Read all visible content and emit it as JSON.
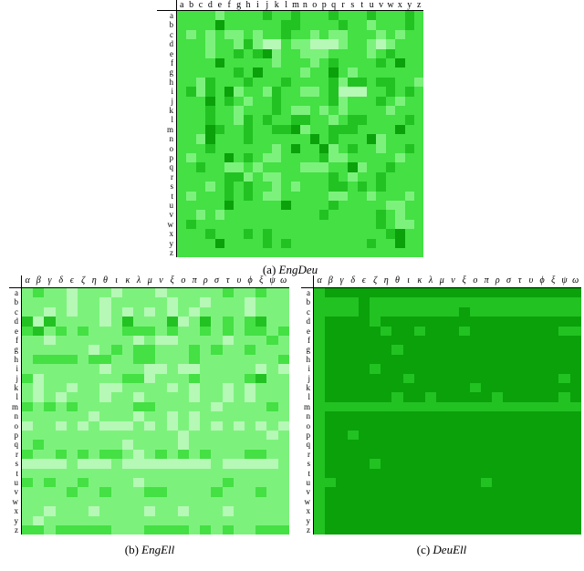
{
  "figure": {
    "panels": [
      {
        "id": "a",
        "caption_prefix": "(a)",
        "caption_name": "EngDeu",
        "col_labels": [
          "a",
          "b",
          "c",
          "d",
          "e",
          "f",
          "g",
          "h",
          "i",
          "j",
          "k",
          "l",
          "m",
          "n",
          "o",
          "p",
          "q",
          "r",
          "s",
          "t",
          "u",
          "v",
          "w",
          "x",
          "y",
          "z"
        ],
        "row_labels": [
          "a",
          "b",
          "c",
          "d",
          "e",
          "f",
          "g",
          "h",
          "i",
          "j",
          "k",
          "l",
          "m",
          "n",
          "o",
          "p",
          "q",
          "r",
          "s",
          "t",
          "u",
          "v",
          "w",
          "x",
          "y",
          "z"
        ],
        "palette": [
          "#0aa10a",
          "#22c222",
          "#44e044",
          "#7cf27c",
          "#b6f8b6"
        ],
        "levels": [
          "22223222212212221222122212",
          "22220222222112222122322212",
          "23232332322122323322232322",
          "22232231344233444322343222",
          "22232212103223332222321222",
          "22220222223222321222212022",
          "22222212022223220232222222",
          "22312221222122221311211223",
          "21312032231223321444221212",
          "22202123221222221322212322",
          "22212232221233232322223222",
          "22212231212211223211222212",
          "22201221221103221112222022",
          "22302221222222021222032222",
          "22212222223202203212232212",
          "23222021233222213322222322",
          "22122332322223332203221222",
          "22222113233222221232212222",
          "22232121223232221121212222",
          "23222121233222223322322232",
          "22222022222022221222223322",
          "22323222222222212222212322",
          "21222222222222222222212332",
          "22212221212222222222221022",
          "22220222212122222222122022",
          "22222222222222222222222222"
        ]
      },
      {
        "id": "b",
        "caption_prefix": "(b)",
        "caption_name": "EngEll",
        "col_labels": [
          "α",
          "β",
          "γ",
          "δ",
          "ϵ",
          "ζ",
          "η",
          "θ",
          "ι",
          "κ",
          "λ",
          "μ",
          "ν",
          "ξ",
          "ο",
          "π",
          "ρ",
          "σ",
          "τ",
          "υ",
          "ϕ",
          "ξ",
          "ψ",
          "ω"
        ],
        "row_labels": [
          "a",
          "b",
          "c",
          "d",
          "e",
          "f",
          "g",
          "h",
          "i",
          "j",
          "k",
          "l",
          "m",
          "n",
          "o",
          "p",
          "q",
          "r",
          "s",
          "t",
          "u",
          "v",
          "w",
          "x",
          "y",
          "z"
        ],
        "palette": [
          "#0aa10a",
          "#22c222",
          "#44e044",
          "#7cf27c",
          "#b6f8b6"
        ],
        "levels": [
          "323343334333433333233233",
          "333343343333343343334333",
          "334343343434343433334333",
          "141333343133314313232133",
          "213232333222323323232232",
          "334333333343443333433323",
          "333333432322333232332333",
          "322223223322333233333332",
          "333333343334434433333434",
          "243333333224333233332133",
          "343343344333343433434333",
          "343433343343333433434333",
          "232323333322333334333323",
          "333333433343343433333333",
          "433434344434343434343434",
          "333333333333334333333343",
          "323333333433334333333333",
          "233232322343232323332233",
          "444434443444444443444443",
          "333333333333333333333333",
          "232332333343333333233333",
          "333323323332233332333233",
          "333333333333333333333333",
          "334333433334334333433333",
          "343333333333333333333333",
          "223222223332222323233222"
        ]
      },
      {
        "id": "c",
        "caption_prefix": "(c)",
        "caption_name": "DeuEll",
        "col_labels": [
          "α",
          "β",
          "γ",
          "δ",
          "ϵ",
          "ζ",
          "η",
          "θ",
          "ι",
          "κ",
          "λ",
          "μ",
          "ν",
          "ξ",
          "ο",
          "π",
          "ρ",
          "σ",
          "τ",
          "υ",
          "ϕ",
          "ξ",
          "ψ",
          "ω"
        ],
        "row_labels": [
          "a",
          "b",
          "c",
          "d",
          "e",
          "f",
          "g",
          "h",
          "i",
          "j",
          "k",
          "l",
          "m",
          "n",
          "o",
          "p",
          "q",
          "r",
          "s",
          "t",
          "u",
          "v",
          "w",
          "x",
          "y",
          "z"
        ],
        "palette": [
          "#0aa10a",
          "#22c222",
          "#44e044",
          "#7cf27c",
          "#b6f8b6"
        ],
        "levels": [
          "100000000000000000000000",
          "111101111111111111111111",
          "111101111111101111111111",
          "100001000000000000000000",
          "100000100100010000000011",
          "100000000000000000000000",
          "100000010000000000000000",
          "100000000000000000000000",
          "100001000000000000000000",
          "100000001000000000000010",
          "100000000000001000000000",
          "100000010010000010000010",
          "111111111111111111111111",
          "100000000000000000000000",
          "100000000000000000000000",
          "100100000000000000000000",
          "100000000000000000000000",
          "100000000000000000000000",
          "100001000000000000000000",
          "100000000000000000000000",
          "110000000000000100000000",
          "100000000000000000000000",
          "100000000000000000000000",
          "100000000000000000000000",
          "100000000000000000000000",
          "100000000000000000000000"
        ]
      }
    ]
  }
}
